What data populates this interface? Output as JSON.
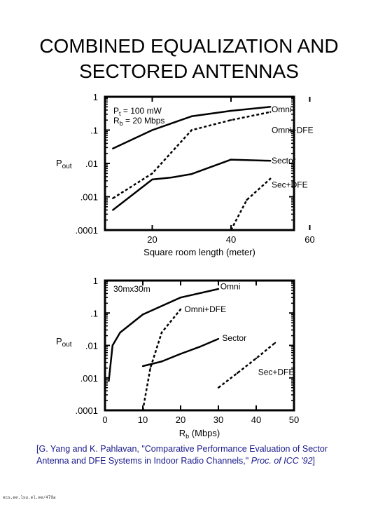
{
  "title": "COMBINED EQUALIZATION AND\nSECTORED ANTENNAS",
  "citation": {
    "pre": "[G. Yang and K. Pahlavan, \"Comparative Performance Evaluation of Sector Antenna and DFE Systems in Indoor Radio Channels,\" ",
    "venue": "Proc. of ICC '92",
    "post": "]"
  },
  "footer_mark": "ecs.ee.lsu.el.ee/479a",
  "chart_data": [
    {
      "type": "line",
      "xlabel": "Square room length (meter)",
      "ylabel": "Pout",
      "ylabel_main": "P",
      "ylabel_sub": "out",
      "xlim": [
        8,
        56
      ],
      "ylim": [
        0.0001,
        1
      ],
      "yscale": "log",
      "x_ticks": [
        "20",
        "40",
        "60"
      ],
      "y_ticks": [
        "1",
        ".1",
        ".01",
        ".001",
        ".0001"
      ],
      "params": [
        {
          "sym": "P",
          "sub": "t",
          "rest": " = 100 mW"
        },
        {
          "sym": "R",
          "sub": "b",
          "rest": " = 20 Mbps"
        }
      ],
      "series": [
        {
          "name": "Omni",
          "style": "solid",
          "x": [
            10,
            20,
            30,
            40,
            50
          ],
          "y": [
            0.028,
            0.1,
            0.26,
            0.38,
            0.5
          ]
        },
        {
          "name": "Omni+DFE",
          "style": "dashed",
          "x": [
            10,
            20,
            30,
            40,
            50
          ],
          "y": [
            0.0009,
            0.005,
            0.1,
            0.2,
            0.35
          ]
        },
        {
          "name": "Sector",
          "style": "solid",
          "x": [
            10,
            20,
            25,
            30,
            40,
            50
          ],
          "y": [
            0.0004,
            0.0033,
            0.0038,
            0.0048,
            0.013,
            0.012
          ]
        },
        {
          "name": "Sec+DFE",
          "style": "dashed",
          "x": [
            40,
            44,
            50
          ],
          "y": [
            0.0001,
            0.0008,
            0.0035
          ]
        }
      ],
      "labels": [
        {
          "text": "Omni",
          "x": 50.3,
          "y": 0.42
        },
        {
          "text": "Omni+DFE",
          "x": 50.3,
          "y": 0.1
        },
        {
          "text": "Sector",
          "x": 50.3,
          "y": 0.012
        },
        {
          "text": "Sec+DFE",
          "x": 50.3,
          "y": 0.0023
        }
      ]
    },
    {
      "type": "line",
      "xlabel": "R_b (Mbps)",
      "xlabel_main": "R",
      "xlabel_sub": "b",
      "xlabel_post": " (Mbps)",
      "ylabel": "Pout",
      "ylabel_main": "P",
      "ylabel_sub": "out",
      "xlim": [
        0,
        50
      ],
      "ylim": [
        0.0001,
        1
      ],
      "yscale": "log",
      "x_ticks": [
        "0",
        "10",
        "20",
        "30",
        "40",
        "50"
      ],
      "y_ticks": [
        "1",
        ".1",
        ".01",
        ".001",
        ".0001"
      ],
      "params": [
        {
          "sym": "30mx30m",
          "sub": "",
          "rest": ""
        }
      ],
      "series": [
        {
          "name": "Omni",
          "style": "solid",
          "x": [
            1,
            2,
            4,
            10,
            20,
            30
          ],
          "y": [
            0.0008,
            0.01,
            0.025,
            0.09,
            0.3,
            0.55
          ]
        },
        {
          "name": "Omni+DFE",
          "style": "dashed",
          "x": [
            10,
            12,
            15,
            20
          ],
          "y": [
            0.0001,
            0.002,
            0.025,
            0.13
          ]
        },
        {
          "name": "Sector",
          "style": "solid",
          "x": [
            10,
            15,
            20,
            25,
            30
          ],
          "y": [
            0.0023,
            0.0032,
            0.0055,
            0.009,
            0.016
          ]
        },
        {
          "name": "Sec+DFE",
          "style": "dashed",
          "x": [
            30,
            35,
            40,
            45
          ],
          "y": [
            0.0005,
            0.0014,
            0.004,
            0.012
          ]
        }
      ],
      "labels": [
        {
          "text": "Omni",
          "x": 30.5,
          "y": 0.65
        },
        {
          "text": "Omni+DFE",
          "x": 21,
          "y": 0.13
        },
        {
          "text": "Sector",
          "x": 31,
          "y": 0.017
        },
        {
          "text": "Sec+DFE",
          "x": 40.5,
          "y": 0.0015
        }
      ]
    }
  ]
}
